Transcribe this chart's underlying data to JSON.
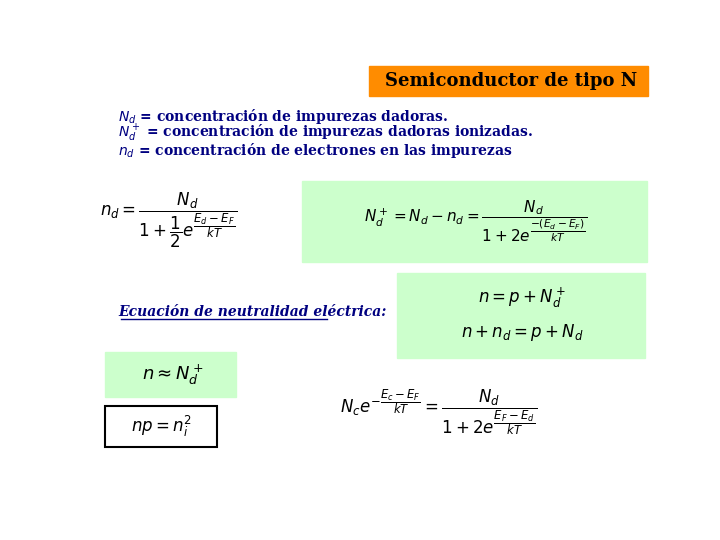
{
  "title": "Semiconductor de tipo N",
  "title_bg": "#FF8C00",
  "bg_color": "#FFFFFF",
  "green_bg": "#CCFFCC",
  "blue_text": "#000080"
}
